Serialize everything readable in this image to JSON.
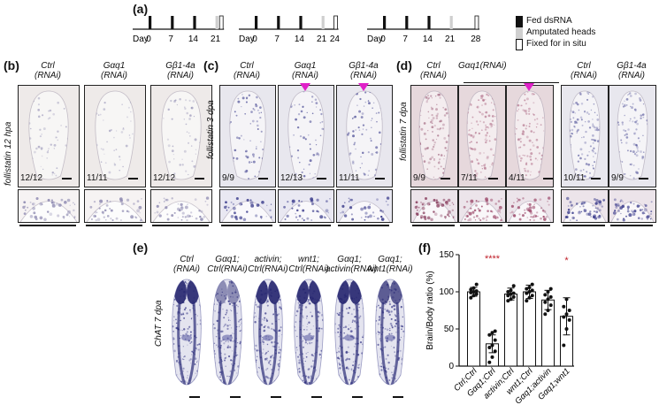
{
  "panel_labels": {
    "a": "(a)",
    "b": "(b)",
    "c": "(c)",
    "d": "(d)",
    "e": "(e)",
    "f": "(f)"
  },
  "timeline": {
    "day_word": "Day",
    "schedules": [
      {
        "ticks": [
          "0",
          "7",
          "14",
          "21"
        ]
      },
      {
        "ticks": [
          "0",
          "7",
          "14",
          "21",
          "24"
        ]
      },
      {
        "ticks": [
          "0",
          "7",
          "14",
          "21",
          "28"
        ]
      }
    ],
    "legend": {
      "fed": "Fed dsRNA",
      "amputated": "Amputated heads",
      "fixed": "Fixed for in situ"
    },
    "colors": {
      "fed": "#111111",
      "amputated": "#cfcfcf",
      "fixed": "#ffffff"
    }
  },
  "panel_b": {
    "side_label": "follistatin 12 hpa",
    "columns": [
      {
        "l1": "Ctrl",
        "l2": "(RNAi)",
        "count": "12/12"
      },
      {
        "l1": "Gαq1",
        "l2": "(RNAi)",
        "count": "11/11"
      },
      {
        "l1": "Gβ1-4a",
        "l2": "(RNAi)",
        "count": "12/12"
      }
    ]
  },
  "panel_c": {
    "side_label": "follistatin 3 dpa",
    "columns": [
      {
        "l1": "Ctrl",
        "l2": "(RNAi)",
        "count": "9/9"
      },
      {
        "l1": "Gαq1",
        "l2": "(RNAi)",
        "count": "12/13"
      },
      {
        "l1": "Gβ1-4a",
        "l2": "(RNAi)",
        "count": "11/11"
      }
    ]
  },
  "panel_d": {
    "side_label": "follistatin 7 dpa",
    "columns": [
      {
        "l1": "Ctrl",
        "l2": "(RNAi)",
        "count": "9/9"
      },
      {
        "l1": "Gαq1(RNAi)",
        "l2": "",
        "count": "7/11"
      },
      {
        "l1": "",
        "l2": "",
        "count": "4/11"
      },
      {
        "l1": "Ctrl",
        "l2": "(RNAi)",
        "count": "10/11"
      },
      {
        "l1": "Gβ1-4a",
        "l2": "(RNAi)",
        "count": "9/9"
      }
    ]
  },
  "panel_e": {
    "side_label": "ChAT 7 dpa",
    "columns": [
      {
        "l1": "Ctrl",
        "l2": "(RNAi)"
      },
      {
        "l1": "Gαq1;",
        "l2": "Ctrl(RNAi)"
      },
      {
        "l1": "activin;",
        "l2": "Ctrl(RNAi)"
      },
      {
        "l1": "wnt1;",
        "l2": "Ctrl(RNAi)"
      },
      {
        "l1": "Gαq1;",
        "l2": "activin(RNAi)"
      },
      {
        "l1": "Gαq1;",
        "l2": "wnt1(RNAi)"
      }
    ]
  },
  "chart_data": {
    "type": "bar",
    "ylabel": "Brain/Body ratio (%)",
    "ylim": [
      0,
      150
    ],
    "yticks": [
      "0",
      "50",
      "100",
      "150"
    ],
    "categories": [
      "Ctrl;Ctrl",
      "Gαq1;Ctrl",
      "activin;Ctrl",
      "wnt1;Ctrl",
      "Gαq1;activin",
      "Gαq1;wnt1"
    ],
    "values": [
      100,
      30,
      97,
      100,
      89,
      67
    ],
    "errors": [
      6,
      12,
      8,
      9,
      13,
      25
    ],
    "significance": [
      "",
      "****",
      "",
      "",
      "",
      "*"
    ],
    "points": [
      [
        92,
        95,
        97,
        99,
        100,
        101,
        103,
        105,
        110
      ],
      [
        5,
        12,
        20,
        25,
        28,
        35,
        42,
        45,
        47
      ],
      [
        88,
        90,
        93,
        95,
        97,
        98,
        100,
        102,
        108
      ],
      [
        88,
        92,
        95,
        98,
        100,
        102,
        104,
        106,
        110
      ],
      [
        70,
        75,
        82,
        86,
        90,
        93,
        96,
        100,
        104
      ],
      [
        28,
        50,
        62,
        66,
        70,
        75,
        80,
        90
      ]
    ],
    "sig_color": "#c0202a"
  }
}
